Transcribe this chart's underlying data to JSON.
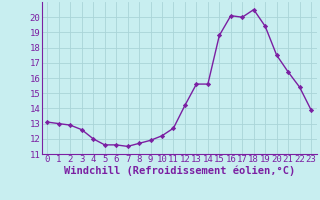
{
  "x": [
    0,
    1,
    2,
    3,
    4,
    5,
    6,
    7,
    8,
    9,
    10,
    11,
    12,
    13,
    14,
    15,
    16,
    17,
    18,
    19,
    20,
    21,
    22,
    23
  ],
  "y": [
    13.1,
    13.0,
    12.9,
    12.6,
    12.0,
    11.6,
    11.6,
    11.5,
    11.7,
    11.9,
    12.2,
    12.7,
    14.2,
    15.6,
    15.6,
    18.8,
    20.1,
    20.0,
    20.5,
    19.4,
    17.5,
    16.4,
    15.4,
    13.9
  ],
  "line_color": "#7b1fa2",
  "marker": "D",
  "marker_size": 2.2,
  "background_color": "#c8eef0",
  "grid_color": "#aad4d8",
  "xlabel": "Windchill (Refroidissement éolien,°C)",
  "xlabel_color": "#7b1fa2",
  "tick_color": "#7b1fa2",
  "spine_color": "#7b1fa2",
  "ylim": [
    11,
    21
  ],
  "xlim": [
    -0.5,
    23.5
  ],
  "yticks": [
    11,
    12,
    13,
    14,
    15,
    16,
    17,
    18,
    19,
    20
  ],
  "xticks": [
    0,
    1,
    2,
    3,
    4,
    5,
    6,
    7,
    8,
    9,
    10,
    11,
    12,
    13,
    14,
    15,
    16,
    17,
    18,
    19,
    20,
    21,
    22,
    23
  ],
  "font_size": 6.5,
  "xlabel_fontsize": 7.5,
  "line_width": 1.0
}
